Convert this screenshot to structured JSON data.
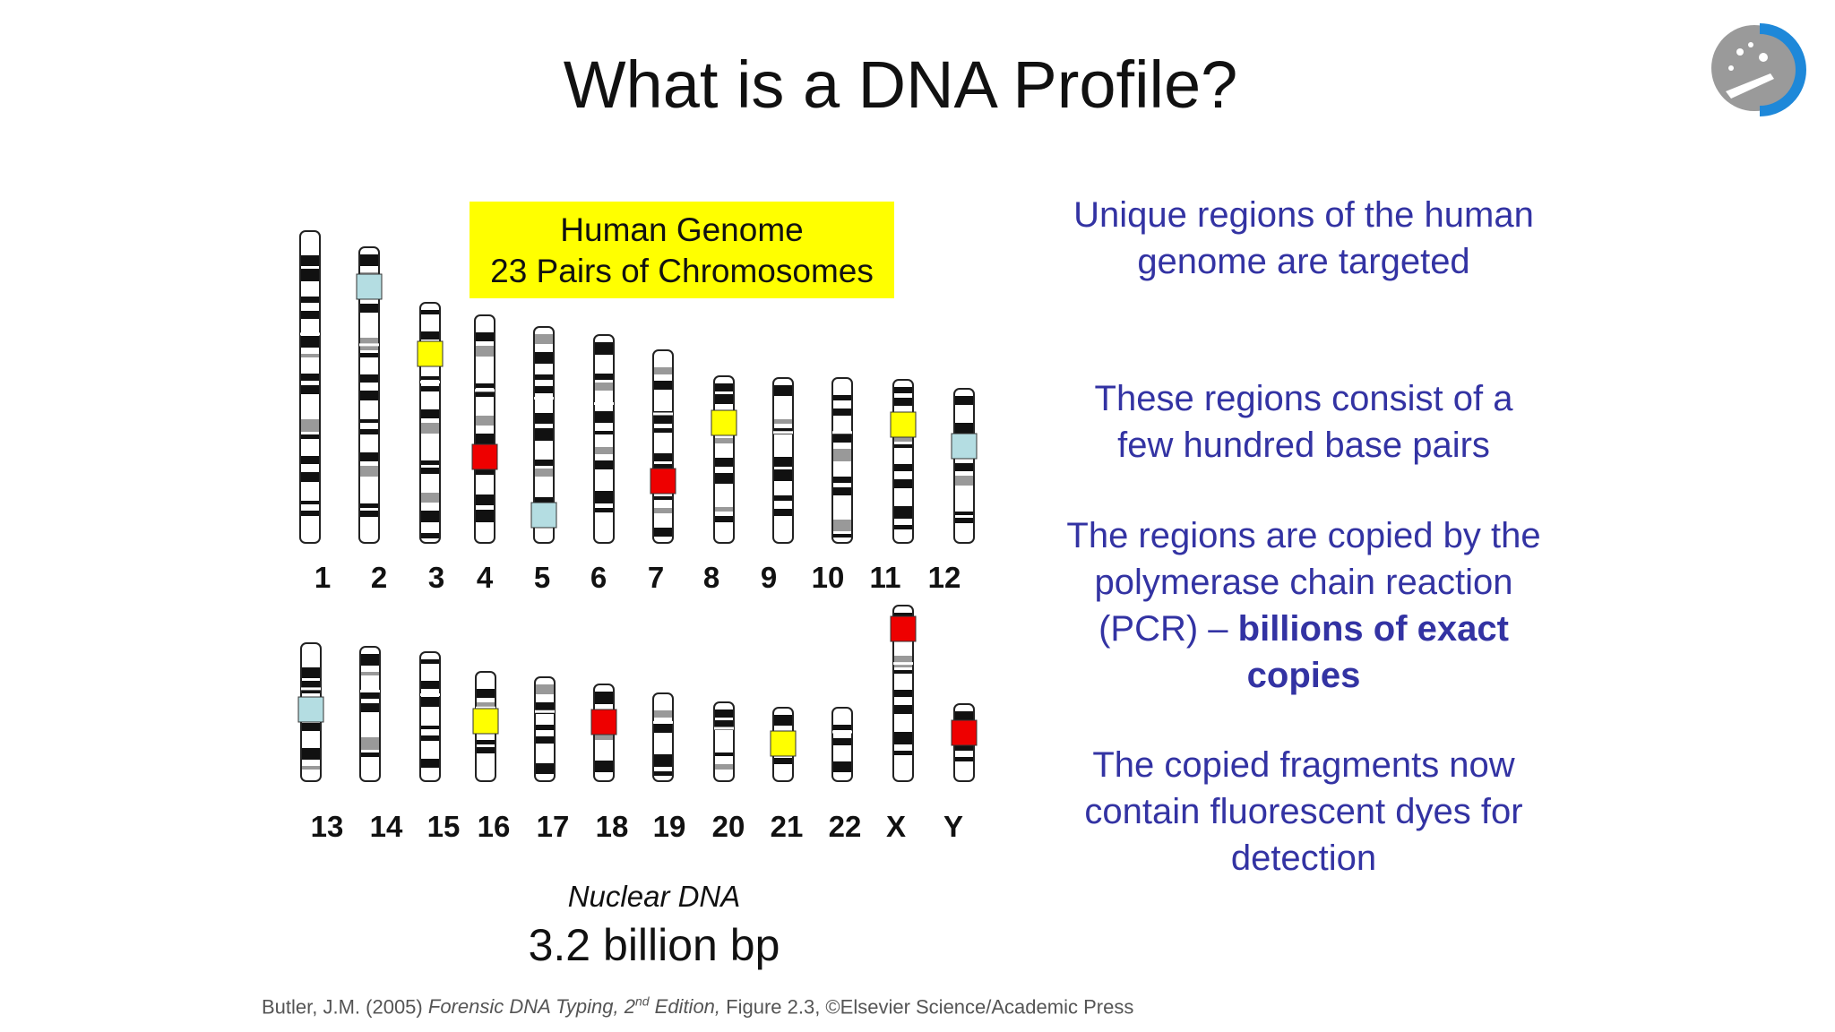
{
  "slide": {
    "title": "What is a DNA Profile?"
  },
  "genome_box": {
    "line1": "Human Genome",
    "line2": "23 Pairs of Chromosomes"
  },
  "karyotype": {
    "row1_labels": [
      "1",
      "2",
      "3",
      "4",
      "5",
      "6",
      "7",
      "8",
      "9",
      "10",
      "11",
      "12"
    ],
    "row2_labels": [
      "13",
      "14",
      "15",
      "16",
      "17",
      "18",
      "19",
      "20",
      "21",
      "22",
      "X",
      "Y"
    ],
    "marker_colors": {
      "yellow": "#ffff00",
      "red": "#ee0000",
      "lightblue": "#b4dde2"
    }
  },
  "nuclear": {
    "label": "Nuclear DNA",
    "size": "3.2 billion bp"
  },
  "right_column": {
    "p1": "Unique regions of the human genome are targeted",
    "p2": "These regions consist of a few hundred base pairs",
    "p3_text": "The regions are copied by the polymerase chain reaction (PCR) –",
    "p3_bold": "billions of exact copies",
    "p4": "The copied fragments now contain fluorescent dyes for detection"
  },
  "citation": {
    "author": "Butler, J.M. (2005)",
    "book": "Forensic DNA Typing, 2",
    "sup": "nd",
    "edition": " Edition,",
    "rest": "Figure 2.3, ©Elsevier Science/Academic Press"
  },
  "colors": {
    "text_blue": "#3333a3",
    "logo_blue": "#1e88d9",
    "logo_gray": "#9a9a9a"
  }
}
